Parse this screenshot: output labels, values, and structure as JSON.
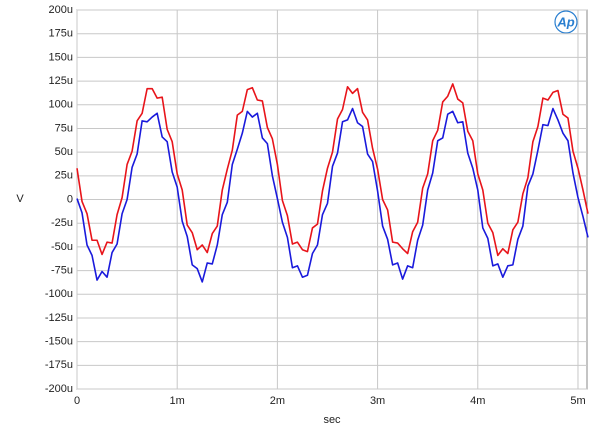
{
  "chart_data": {
    "type": "line",
    "xlabel": "sec",
    "ylabel": "V",
    "logo": "Ap",
    "x": [
      0,
      0.05,
      0.1,
      0.15,
      0.2,
      0.25,
      0.3,
      0.35,
      0.4,
      0.45,
      0.5,
      0.55,
      0.6,
      0.65,
      0.7,
      0.75,
      0.8,
      0.85,
      0.9,
      0.95,
      1,
      1.05,
      1.1,
      1.15,
      1.2,
      1.25,
      1.3,
      1.35,
      1.4,
      1.45,
      1.5,
      1.55,
      1.6,
      1.65,
      1.7,
      1.75,
      1.8,
      1.85,
      1.9,
      1.95,
      2,
      2.05,
      2.1,
      2.15,
      2.2,
      2.25,
      2.3,
      2.35,
      2.4,
      2.45,
      2.5,
      2.55,
      2.6,
      2.65,
      2.7,
      2.75,
      2.8,
      2.85,
      2.9,
      2.95,
      3,
      3.05,
      3.1,
      3.15,
      3.2,
      3.25,
      3.3,
      3.35,
      3.4,
      3.45,
      3.5,
      3.55,
      3.6,
      3.65,
      3.7,
      3.75,
      3.8,
      3.85,
      3.9,
      3.95,
      4,
      4.05,
      4.1,
      4.15,
      4.2,
      4.25,
      4.3,
      4.35,
      4.4,
      4.45,
      4.5,
      4.55,
      4.6,
      4.65,
      4.7,
      4.75,
      4.8,
      4.85,
      4.9,
      4.95,
      5,
      5.05,
      5.1
    ],
    "series": [
      {
        "color": "#e8141a",
        "values": [
          33,
          -2,
          -15,
          -43,
          -43,
          -58,
          -45,
          -46,
          -16,
          2,
          37,
          51,
          83,
          91,
          117,
          117,
          107,
          108,
          74,
          61,
          27,
          10,
          -27,
          -35,
          -53,
          -48,
          -56,
          -36,
          -28,
          10,
          32,
          52,
          89,
          93,
          116,
          118,
          105,
          104,
          76,
          64,
          37,
          -1,
          -17,
          -47,
          -45,
          -53,
          -55,
          -30,
          -26,
          9,
          33,
          50,
          85,
          95,
          119,
          112,
          117,
          92,
          84,
          54,
          32,
          0,
          -11,
          -45,
          -46,
          -52,
          -57,
          -34,
          -24,
          12,
          27,
          62,
          73,
          103,
          109,
          122,
          106,
          102,
          72,
          62,
          27,
          10,
          -25,
          -35,
          -59,
          -52,
          -57,
          -32,
          -24,
          6,
          23,
          61,
          77,
          107,
          105,
          113,
          115,
          90,
          86,
          51,
          33,
          10,
          -15
        ]
      },
      {
        "color": "#1a1adc",
        "values": [
          1,
          -14,
          -48,
          -59,
          -85,
          -76,
          -82,
          -56,
          -47,
          -15,
          0,
          34,
          48,
          83,
          82,
          87,
          91,
          66,
          61,
          29,
          13,
          -23,
          -39,
          -69,
          -73,
          -87,
          -67,
          -68,
          -48,
          -16,
          -3,
          37,
          53,
          70,
          93,
          87,
          91,
          65,
          59,
          25,
          1,
          -24,
          -40,
          -72,
          -70,
          -82,
          -80,
          -57,
          -48,
          -16,
          -4,
          35,
          49,
          82,
          84,
          96,
          81,
          77,
          48,
          40,
          9,
          -28,
          -42,
          -69,
          -67,
          -84,
          -70,
          -72,
          -43,
          -27,
          10,
          28,
          62,
          65,
          90,
          93,
          81,
          82,
          49,
          33,
          10,
          -30,
          -41,
          -70,
          -68,
          -82,
          -70,
          -69,
          -42,
          -28,
          14,
          27,
          52,
          79,
          78,
          96,
          84,
          70,
          62,
          28,
          2,
          -18,
          -40
        ]
      }
    ],
    "xlim": [
      0,
      5.09
    ],
    "xticks": [
      0,
      {
        "value": 1,
        "label": "1m"
      },
      {
        "value": 2,
        "label": "2m"
      },
      {
        "value": 3,
        "label": "3m"
      },
      {
        "value": 4,
        "label": "4m"
      },
      {
        "value": 5,
        "label": "5m"
      }
    ],
    "ylim": [
      -200,
      200
    ],
    "yticks": [
      {
        "value": 200,
        "label": "200u"
      },
      {
        "value": 175,
        "label": "175u"
      },
      {
        "value": 150,
        "label": "150u"
      },
      {
        "value": 125,
        "label": "125u"
      },
      {
        "value": 100,
        "label": "100u"
      },
      {
        "value": 75,
        "label": "75u"
      },
      {
        "value": 50,
        "label": "50u"
      },
      {
        "value": 25,
        "label": "25u"
      },
      0,
      {
        "value": -25,
        "label": "-25u"
      },
      {
        "value": -50,
        "label": "-50u"
      },
      {
        "value": -75,
        "label": "-75u"
      },
      {
        "value": -100,
        "label": "-100u"
      },
      {
        "value": -125,
        "label": "-125u"
      },
      {
        "value": -150,
        "label": "-150u"
      },
      {
        "value": -175,
        "label": "-175u"
      },
      {
        "value": -200,
        "label": "-200u"
      }
    ],
    "grid": true
  }
}
